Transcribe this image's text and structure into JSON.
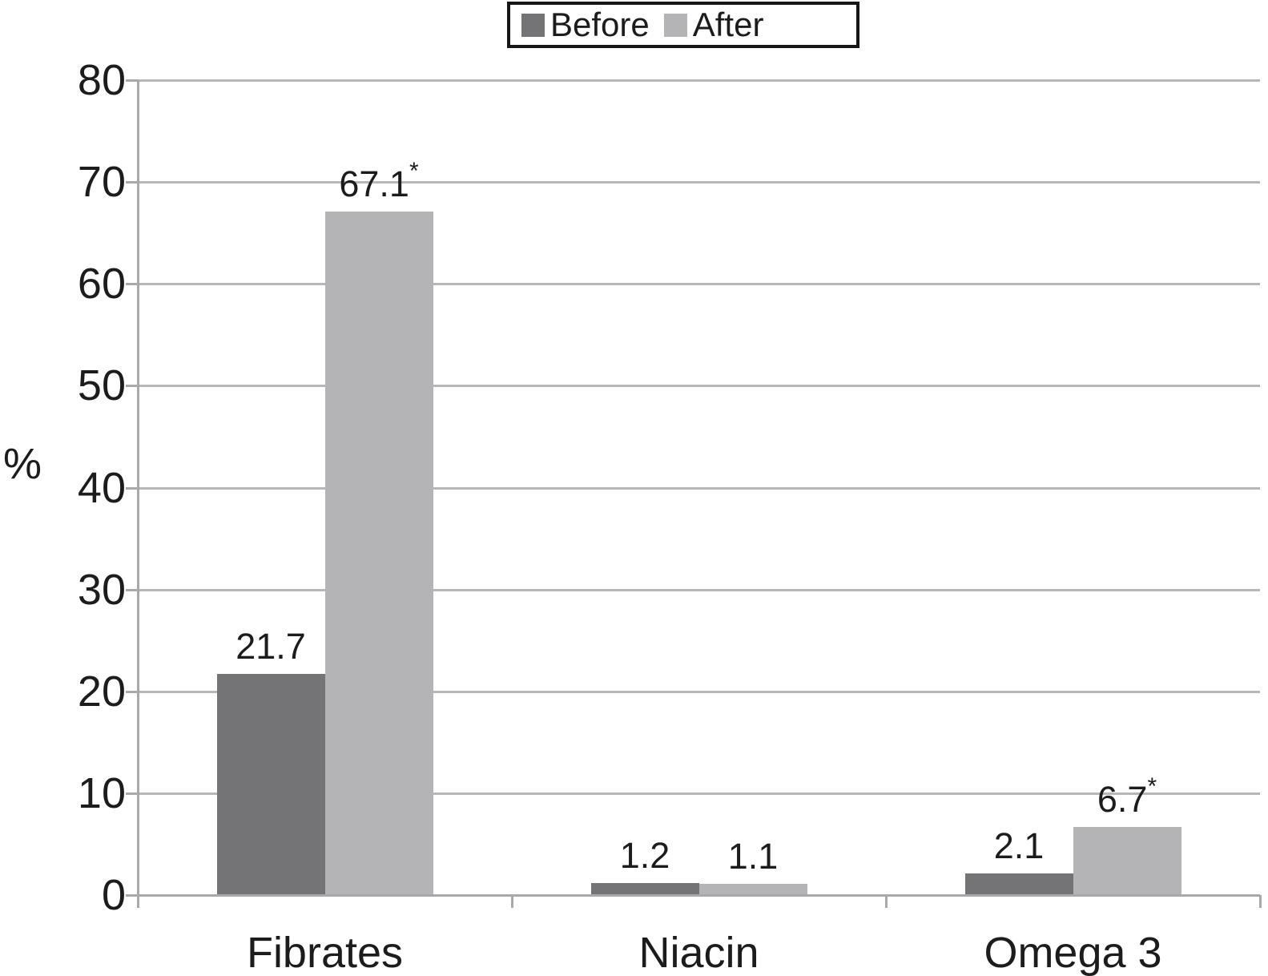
{
  "chart_data": {
    "type": "bar",
    "title": "",
    "ylabel": "%",
    "categories": [
      "Fibrates",
      "Niacin",
      "Omega 3"
    ],
    "series": [
      {
        "name": "Before",
        "color": "#747477",
        "values": [
          21.7,
          1.2,
          2.1
        ],
        "labels": [
          "21.7",
          "1.2",
          "2.1"
        ],
        "starred": [
          false,
          false,
          false
        ]
      },
      {
        "name": "After",
        "color": "#b4b4b6",
        "values": [
          67.1,
          1.1,
          6.7
        ],
        "labels": [
          "67.1",
          "1.1",
          "6.7"
        ],
        "starred": [
          true,
          false,
          true
        ]
      }
    ],
    "ylim": [
      0,
      80
    ],
    "yticks": [
      0,
      10,
      20,
      30,
      40,
      50,
      60,
      70,
      80
    ],
    "grid": true,
    "legend_position": "top-center",
    "annotation_marker": "*",
    "colors": {
      "grid": "#b7b7b9",
      "axis": "#a9a9ab",
      "text": "#1c1c1c",
      "legend_border": "#161616",
      "background": "#ffffff"
    }
  }
}
